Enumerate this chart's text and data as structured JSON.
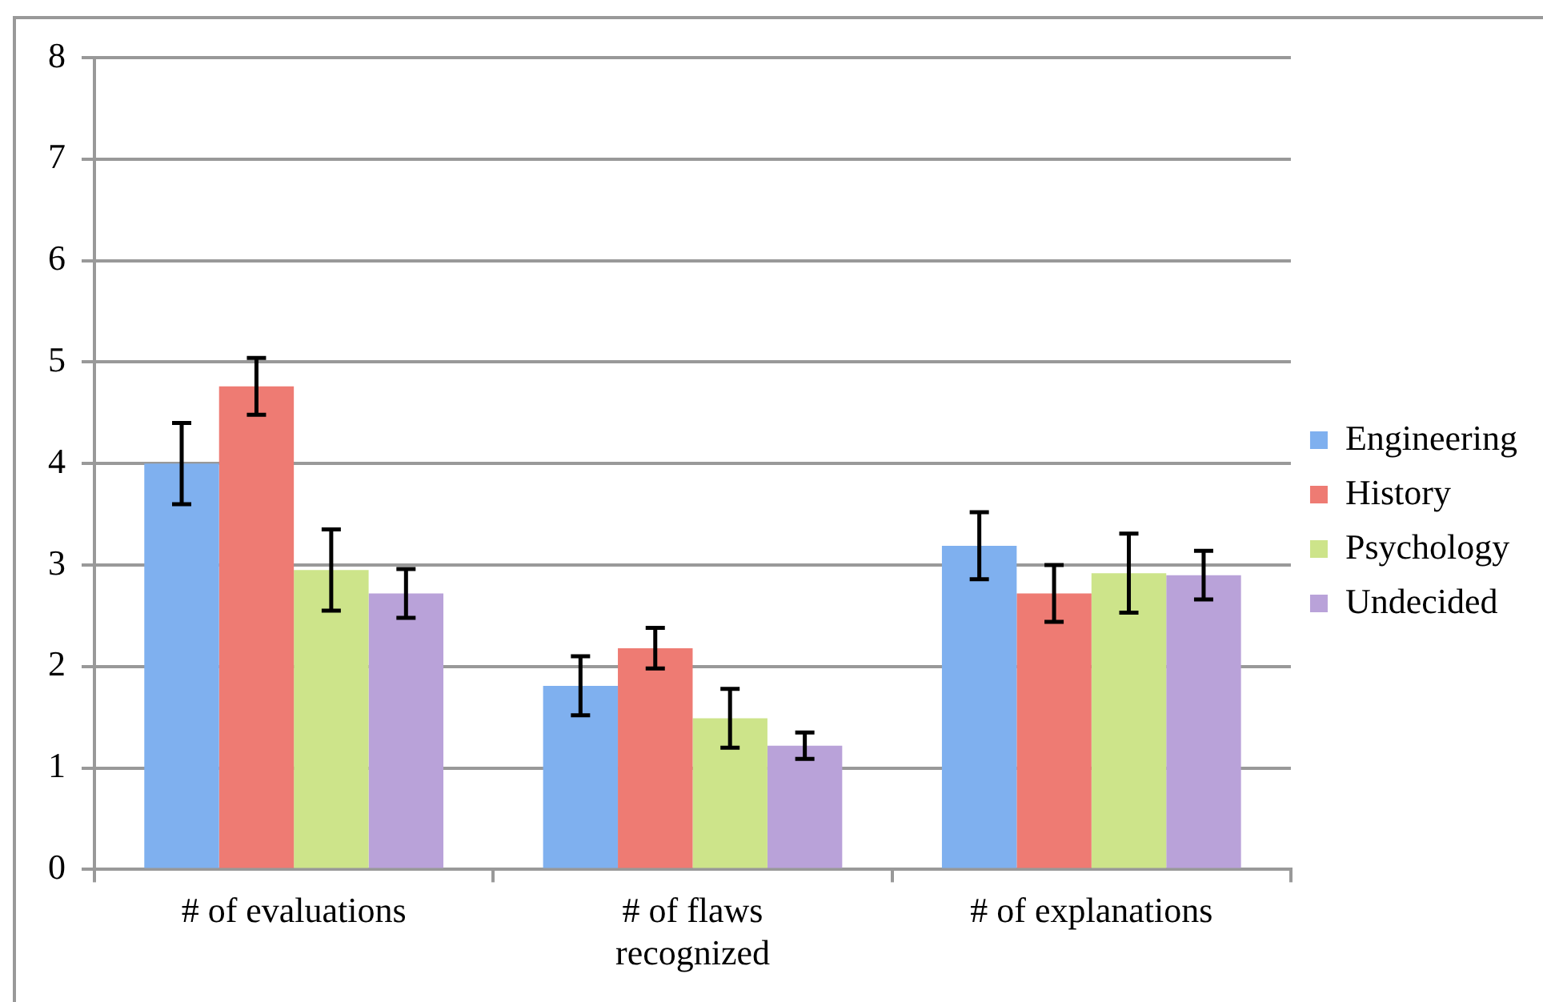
{
  "chart_data": {
    "type": "bar",
    "categories": [
      "# of evaluations",
      "# of flaws recognized",
      "# of explanations"
    ],
    "series": [
      {
        "name": "Engineering",
        "color": "#7fb0ef",
        "values": [
          4.0,
          1.81,
          3.19
        ],
        "errors": [
          0.4,
          0.29,
          0.33
        ]
      },
      {
        "name": "History",
        "color": "#ee7b73",
        "values": [
          4.76,
          2.18,
          2.72
        ],
        "errors": [
          0.28,
          0.2,
          0.28
        ]
      },
      {
        "name": "Psychology",
        "color": "#cde48a",
        "values": [
          2.95,
          1.49,
          2.92
        ],
        "errors": [
          0.4,
          0.29,
          0.39
        ]
      },
      {
        "name": "Undecided",
        "color": "#b9a2d9",
        "values": [
          2.72,
          1.22,
          2.9
        ],
        "errors": [
          0.24,
          0.13,
          0.24
        ]
      }
    ],
    "ylim": [
      0,
      8
    ],
    "yticks": [
      0,
      1,
      2,
      3,
      4,
      5,
      6,
      7,
      8
    ],
    "grid": "y",
    "legend": "right"
  }
}
